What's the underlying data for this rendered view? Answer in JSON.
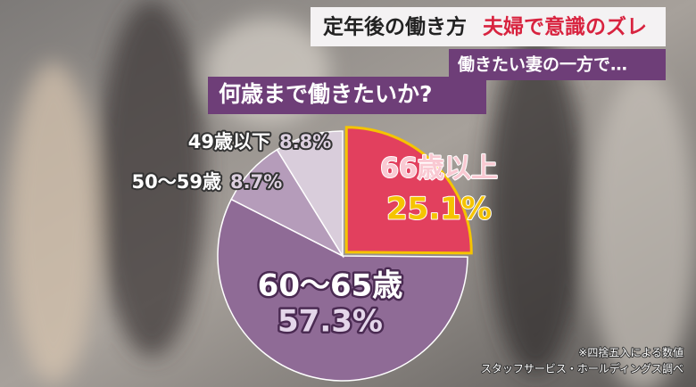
{
  "header": {
    "title_left": "定年後の働き方",
    "title_right": "夫婦で意識のズレ",
    "subtitle": "働きたい妻の一方で…"
  },
  "chart_data": {
    "type": "pie",
    "title": "何歳まで働きたいか?",
    "categories": [
      "66歳以上",
      "60〜65歳",
      "50〜59歳",
      "49歳以下"
    ],
    "values": [
      25.1,
      57.3,
      8.7,
      8.8
    ],
    "value_labels": [
      "25.1%",
      "57.3%",
      "8.7%",
      "8.8%"
    ],
    "colors": [
      "#e2405e",
      "#8f6b96",
      "#b59cba",
      "#d9cddb"
    ],
    "note": "※四捨五入による数値",
    "source": "スタッフサービス・ホールディングス調べ"
  }
}
